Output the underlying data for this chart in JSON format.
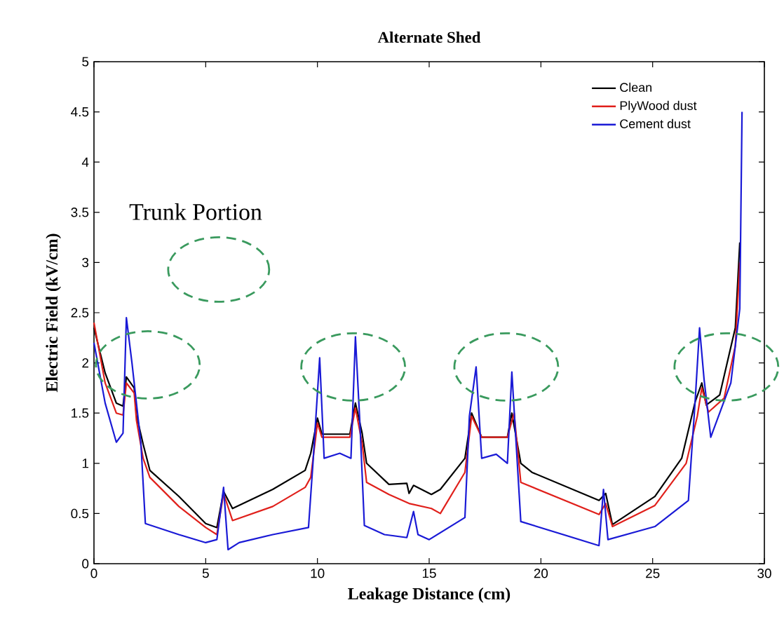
{
  "chart_data": {
    "type": "line",
    "title": "Alternate Shed",
    "xlabel": "Leakage Distance  (cm)",
    "ylabel": "Electric Field  (kV/cm)",
    "annotations": [
      "Trunk Portion"
    ],
    "xlim": [
      0,
      30
    ],
    "ylim": [
      0,
      5
    ],
    "xticks": [
      0,
      5,
      10,
      15,
      20,
      25,
      30
    ],
    "yticks": [
      0,
      0.5,
      1,
      1.5,
      2,
      2.5,
      3,
      3.5,
      4,
      4.5,
      5
    ],
    "legend": "top right",
    "grid": false,
    "marker": "none",
    "series": [
      {
        "name": "Clean",
        "color": "#000000",
        "x": [
          0,
          0.5,
          1.0,
          1.3,
          1.45,
          1.8,
          1.9,
          2.2,
          2.5,
          3.8,
          5.0,
          5.5,
          5.8,
          6.2,
          8.0,
          9.45,
          9.7,
          10.0,
          10.2,
          11.45,
          11.7,
          12.0,
          12.2,
          13.2,
          14.0,
          14.1,
          14.3,
          15.1,
          15.5,
          16.6,
          16.9,
          17.35,
          18.5,
          18.7,
          19.1,
          19.6,
          22.6,
          22.9,
          23.2,
          25.1,
          26.3,
          26.9,
          27.2,
          27.4,
          28.0,
          28.7,
          28.9
        ],
        "values": [
          2.35,
          1.9,
          1.6,
          1.57,
          1.86,
          1.75,
          1.48,
          1.19,
          0.93,
          0.67,
          0.4,
          0.36,
          0.72,
          0.55,
          0.74,
          0.93,
          1.1,
          1.45,
          1.29,
          1.29,
          1.6,
          1.3,
          1.0,
          0.79,
          0.8,
          0.7,
          0.78,
          0.69,
          0.74,
          1.05,
          1.5,
          1.26,
          1.26,
          1.5,
          1.0,
          0.91,
          0.63,
          0.7,
          0.39,
          0.67,
          1.05,
          1.61,
          1.8,
          1.58,
          1.68,
          2.35,
          3.2
        ]
      },
      {
        "name": "PlyWood dust",
        "color": "#e0201b",
        "x": [
          0,
          0.5,
          1.0,
          1.3,
          1.45,
          1.8,
          1.9,
          2.2,
          2.5,
          3.8,
          5.0,
          5.5,
          5.8,
          6.2,
          8.0,
          9.45,
          9.7,
          10.0,
          10.2,
          11.45,
          11.7,
          12.0,
          12.2,
          13.2,
          14.1,
          15.1,
          15.5,
          16.6,
          16.9,
          17.35,
          18.5,
          18.8,
          19.1,
          22.6,
          22.9,
          23.2,
          25.1,
          26.5,
          27.0,
          27.2,
          27.5,
          28.2,
          28.7,
          28.9
        ],
        "values": [
          2.4,
          1.8,
          1.5,
          1.48,
          1.8,
          1.7,
          1.43,
          1.05,
          0.86,
          0.57,
          0.36,
          0.29,
          0.7,
          0.43,
          0.57,
          0.76,
          0.86,
          1.4,
          1.26,
          1.26,
          1.55,
          1.2,
          0.81,
          0.69,
          0.6,
          0.55,
          0.5,
          0.91,
          1.47,
          1.26,
          1.26,
          1.5,
          0.81,
          0.49,
          0.6,
          0.37,
          0.58,
          1.0,
          1.47,
          1.75,
          1.51,
          1.65,
          2.17,
          3.0
        ]
      },
      {
        "name": "Cement dust",
        "color": "#1a1ad6",
        "x": [
          0,
          0.5,
          1.0,
          1.3,
          1.45,
          1.7,
          2.1,
          2.3,
          3.8,
          5.0,
          5.5,
          5.8,
          6.0,
          6.5,
          8.0,
          9.6,
          9.8,
          10.1,
          10.3,
          11.0,
          11.5,
          11.7,
          11.9,
          12.1,
          13.0,
          14.0,
          14.3,
          14.5,
          15.0,
          16.6,
          16.8,
          17.1,
          17.35,
          18.0,
          18.5,
          18.7,
          19.1,
          22.6,
          22.8,
          23.0,
          25.1,
          26.6,
          26.9,
          27.1,
          27.3,
          27.6,
          28.5,
          28.9,
          29.0
        ],
        "values": [
          2.2,
          1.6,
          1.21,
          1.3,
          2.45,
          2.0,
          1.2,
          0.4,
          0.29,
          0.21,
          0.24,
          0.76,
          0.14,
          0.21,
          0.29,
          0.36,
          1.0,
          2.05,
          1.05,
          1.1,
          1.05,
          2.26,
          1.4,
          0.38,
          0.29,
          0.26,
          0.52,
          0.29,
          0.24,
          0.46,
          1.47,
          1.96,
          1.05,
          1.09,
          1.0,
          1.91,
          0.42,
          0.18,
          0.74,
          0.24,
          0.37,
          0.63,
          1.61,
          2.35,
          1.84,
          1.26,
          1.8,
          2.54,
          4.5
        ]
      }
    ]
  }
}
